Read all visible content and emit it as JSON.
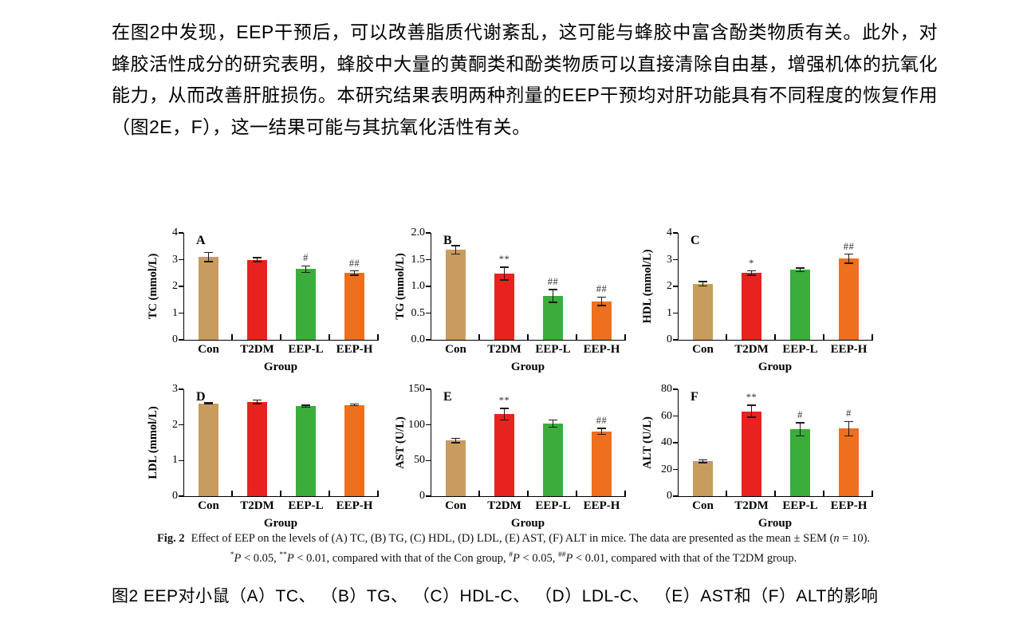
{
  "paragraph": {
    "text": "在图2中发现，EEP干预后，可以改善脂质代谢紊乱，这可能与蜂胶中富含酚类物质有关。此外，对蜂胶活性成分的研究表明，蜂胶中大量的黄酮类和酚类物质可以直接清除自由基，增强机体的抗氧化能力，从而改善肝脏损伤。本研究结果表明两种剂量的EEP干预均对肝功能具有不同程度的恢复作用（图2E，F），这一结果可能与其抗氧化活性有关。"
  },
  "bar_colors": [
    "#C89B5F",
    "#E8221E",
    "#3BAD3B",
    "#EE6F1E"
  ],
  "chart_data": [
    {
      "type": "bar",
      "panel": "A",
      "ylabel": "TC (mmol/L)",
      "xlabel": "Group",
      "categories": [
        "Con",
        "T2DM",
        "EEP-L",
        "EEP-H"
      ],
      "values": [
        3.1,
        3.0,
        2.65,
        2.5
      ],
      "errors": [
        0.17,
        0.07,
        0.12,
        0.08
      ],
      "sig": [
        "",
        "",
        "#",
        "##"
      ],
      "ylim": [
        0,
        4
      ],
      "yticks": [
        "0",
        "1",
        "2",
        "3",
        "4"
      ]
    },
    {
      "type": "bar",
      "panel": "B",
      "ylabel": "TG (mmol/L)",
      "xlabel": "Group",
      "categories": [
        "Con",
        "T2DM",
        "EEP-L",
        "EEP-H"
      ],
      "values": [
        1.68,
        1.24,
        0.82,
        0.72
      ],
      "errors": [
        0.08,
        0.12,
        0.12,
        0.08
      ],
      "sig": [
        "",
        "**",
        "##",
        "##"
      ],
      "ylim": [
        0,
        2
      ],
      "yticks": [
        "0.0",
        "0.5",
        "1.0",
        "1.5",
        "2.0"
      ]
    },
    {
      "type": "bar",
      "panel": "C",
      "ylabel": "HDL (mmol/L)",
      "xlabel": "Group",
      "categories": [
        "Con",
        "T2DM",
        "EEP-L",
        "EEP-H"
      ],
      "values": [
        2.1,
        2.5,
        2.62,
        3.03
      ],
      "errors": [
        0.08,
        0.08,
        0.07,
        0.17
      ],
      "sig": [
        "",
        "*",
        "",
        "##"
      ],
      "ylim": [
        0,
        4
      ],
      "yticks": [
        "0",
        "1",
        "2",
        "3",
        "4"
      ]
    },
    {
      "type": "bar",
      "panel": "D",
      "ylabel": "LDL (mmol/L)",
      "xlabel": "Group",
      "categories": [
        "Con",
        "T2DM",
        "EEP-L",
        "EEP-H"
      ],
      "values": [
        2.6,
        2.65,
        2.52,
        2.56
      ],
      "errors": [
        0.02,
        0.05,
        0.03,
        0.02
      ],
      "sig": [
        "",
        "",
        "",
        ""
      ],
      "ylim": [
        0,
        3
      ],
      "yticks": [
        "0",
        "1",
        "2",
        "3"
      ]
    },
    {
      "type": "bar",
      "panel": "E",
      "ylabel": "AST (U/L)",
      "xlabel": "Group",
      "categories": [
        "Con",
        "T2DM",
        "EEP-L",
        "EEP-H"
      ],
      "values": [
        78,
        115,
        102,
        91
      ],
      "errors": [
        3,
        8,
        5,
        4
      ],
      "sig": [
        "",
        "**",
        "",
        "##"
      ],
      "ylim": [
        0,
        150
      ],
      "yticks": [
        "0",
        "50",
        "100",
        "150"
      ]
    },
    {
      "type": "bar",
      "panel": "F",
      "ylabel": "ALT (U/L)",
      "xlabel": "Group",
      "categories": [
        "Con",
        "T2DM",
        "EEP-L",
        "EEP-H"
      ],
      "values": [
        26,
        63.5,
        50,
        50.5
      ],
      "errors": [
        1,
        4.5,
        5,
        5.5
      ],
      "sig": [
        "",
        "**",
        "#",
        "#"
      ],
      "ylim": [
        0,
        80
      ],
      "yticks": [
        "0",
        "20",
        "40",
        "60",
        "80"
      ]
    }
  ],
  "figure_caption": {
    "line1": [
      {
        "b": true,
        "text": "Fig. 2"
      },
      {
        "text": "Effect of EEP on the levels of (A) TC, (B) TG, (C) HDL, (D) LDL, (E) AST, (F) ALT in mice. The data are presented as the mean ± SEM ("
      },
      {
        "i": true,
        "text": "n"
      },
      {
        "text": " = 10)."
      }
    ],
    "line2": [
      {
        "sup": true,
        "text": "*"
      },
      {
        "i": true,
        "text": "P"
      },
      {
        "text": " < 0.05, "
      },
      {
        "sup": true,
        "text": "**"
      },
      {
        "i": true,
        "text": "P"
      },
      {
        "text": " < 0.01, compared with that of the Con group, "
      },
      {
        "sup": true,
        "text": "#"
      },
      {
        "i": true,
        "text": "P"
      },
      {
        "text": " < 0.05, "
      },
      {
        "sup": true,
        "text": "##"
      },
      {
        "i": true,
        "text": "P"
      },
      {
        "text": " < 0.01, compared with that of the T2DM group."
      }
    ]
  },
  "caption_cn": {
    "text": "图2  EEP对小鼠（A）TC、 （B）TG、 （C）HDL-C、 （D）LDL-C、 （E）AST和（F）ALT的影响"
  }
}
